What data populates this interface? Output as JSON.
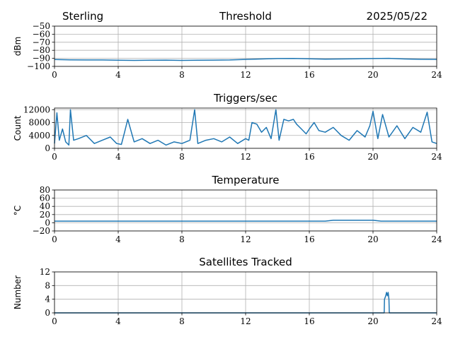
{
  "header": {
    "site": "Sterling",
    "date": "2025/05/22"
  },
  "colors": {
    "series": "#1f77b4",
    "grid": "#b0b0b0"
  },
  "chart_data": [
    {
      "type": "line",
      "title": "Threshold",
      "xlabel": "",
      "ylabel": "dBm",
      "xlim": [
        0,
        24
      ],
      "ylim": [
        -100,
        -50
      ],
      "xticks": [
        0,
        4,
        8,
        12,
        16,
        20,
        24
      ],
      "yticks": [
        -100,
        -90,
        -80,
        -70,
        -60,
        -50
      ],
      "ytick_labels": [
        "−100",
        "−90",
        "−80",
        "−70",
        "−60",
        "−50"
      ],
      "grid": true,
      "series": [
        {
          "x": [
            0,
            1,
            2,
            3,
            4,
            5,
            6,
            7,
            8,
            9,
            10,
            11,
            12,
            13,
            14,
            15,
            16,
            17,
            18,
            19,
            20,
            21,
            22,
            23,
            24
          ],
          "values": [
            -91.5,
            -91.8,
            -92,
            -92,
            -92.3,
            -92.5,
            -92.3,
            -92.2,
            -92.5,
            -92.4,
            -92.2,
            -92,
            -91.3,
            -90.8,
            -90.3,
            -90.2,
            -90.5,
            -91,
            -90.8,
            -90.5,
            -90.3,
            -90,
            -90.8,
            -91.2,
            -91.3
          ]
        }
      ]
    },
    {
      "type": "line",
      "title": "Triggers/sec",
      "xlabel": "",
      "ylabel": "Count",
      "xlim": [
        0,
        24
      ],
      "ylim": [
        0,
        12500
      ],
      "xticks": [
        0,
        4,
        8,
        12,
        16,
        20,
        24
      ],
      "yticks": [
        0,
        4000,
        8000,
        12000
      ],
      "grid": true,
      "series": [
        {
          "x": [
            0,
            0.15,
            0.3,
            0.5,
            0.7,
            0.9,
            1.0,
            1.2,
            1.5,
            2.0,
            2.5,
            3.0,
            3.5,
            3.9,
            4.2,
            4.4,
            4.6,
            5.0,
            5.5,
            6.0,
            6.5,
            7.0,
            7.5,
            8.0,
            8.5,
            8.8,
            9.0,
            9.5,
            10.0,
            10.5,
            11.0,
            11.5,
            12.0,
            12.2,
            12.4,
            12.7,
            13.0,
            13.3,
            13.6,
            13.9,
            14.1,
            14.4,
            14.7,
            15.0,
            15.2,
            15.5,
            15.8,
            16.0,
            16.3,
            16.6,
            17.0,
            17.5,
            18.0,
            18.5,
            19.0,
            19.5,
            19.8,
            20.0,
            20.3,
            20.6,
            21.0,
            21.5,
            22.0,
            22.5,
            23.0,
            23.4,
            23.7,
            24.0
          ],
          "values": [
            1500,
            11000,
            2500,
            6000,
            2000,
            1000,
            12000,
            2500,
            3000,
            4000,
            1500,
            2500,
            3500,
            1500,
            1200,
            5000,
            9000,
            2000,
            3000,
            1500,
            2500,
            1000,
            2000,
            1500,
            2500,
            12000,
            1500,
            2500,
            3000,
            2000,
            3500,
            1500,
            3000,
            2500,
            8000,
            7500,
            5000,
            6500,
            3000,
            12000,
            2500,
            9000,
            8500,
            9000,
            7500,
            6000,
            4500,
            6000,
            8000,
            5500,
            5000,
            6500,
            4000,
            2500,
            5500,
            3500,
            7000,
            11500,
            3000,
            10500,
            3500,
            7000,
            3000,
            6500,
            5000,
            11200,
            2000,
            1500
          ]
        }
      ]
    },
    {
      "type": "line",
      "title": "Temperature",
      "xlabel": "",
      "ylabel": "°C",
      "xlim": [
        0,
        24
      ],
      "ylim": [
        -20,
        80
      ],
      "xticks": [
        0,
        4,
        8,
        12,
        16,
        20,
        24
      ],
      "yticks": [
        -20,
        0,
        20,
        40,
        60,
        80
      ],
      "ytick_labels": [
        "−20",
        "0",
        "20",
        "40",
        "60",
        "80"
      ],
      "grid": true,
      "series": [
        {
          "x": [
            0,
            2,
            4,
            6,
            8,
            10,
            12,
            14,
            16,
            17,
            17.5,
            18,
            19,
            20,
            20.5,
            21,
            22,
            23,
            24
          ],
          "values": [
            4,
            4,
            4,
            4,
            4,
            4,
            4,
            4,
            4,
            4,
            6,
            6,
            6,
            6,
            4,
            4,
            4,
            4,
            4
          ]
        }
      ]
    },
    {
      "type": "line",
      "title": "Satellites Tracked",
      "xlabel": "",
      "ylabel": "Number",
      "xlim": [
        0,
        24
      ],
      "ylim": [
        0,
        12
      ],
      "xticks": [
        0,
        4,
        8,
        12,
        16,
        20,
        24
      ],
      "yticks": [
        0,
        4,
        8,
        12
      ],
      "grid": true,
      "series": [
        {
          "x": [
            0,
            20.7,
            20.72,
            20.8,
            20.85,
            20.9,
            20.95,
            21.0,
            21.02,
            24
          ],
          "values": [
            0,
            0,
            4,
            5,
            6,
            5,
            6,
            4,
            0,
            0
          ]
        }
      ]
    }
  ]
}
